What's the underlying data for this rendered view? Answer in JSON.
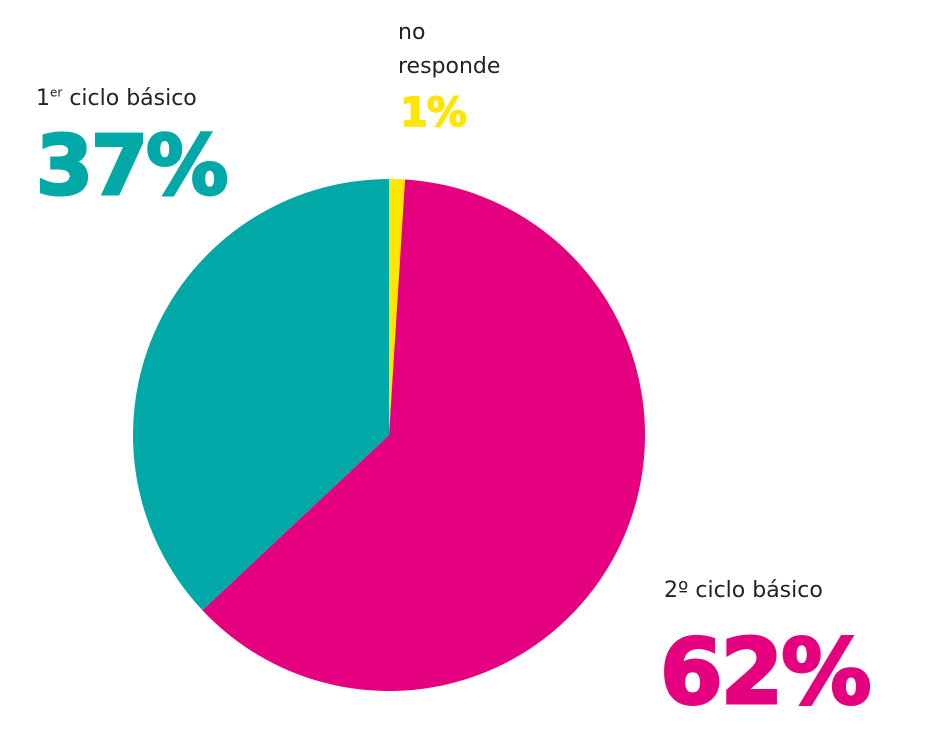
{
  "chart_data": {
    "type": "pie",
    "slices": [
      {
        "label": "no responde",
        "label_lines": [
          "no",
          "responde"
        ],
        "value": 1,
        "display": "1%",
        "color": "#ffe600"
      },
      {
        "label": "2º ciclo básico",
        "label_main": "2º ciclo básico",
        "value": 62,
        "display": "62%",
        "color": "#e4007e"
      },
      {
        "label": "1er ciclo básico",
        "label_prefix": "1",
        "label_sup": "er",
        "label_suffix": " ciclo básico",
        "value": 37,
        "display": "37%",
        "color": "#00a8a8"
      }
    ]
  }
}
